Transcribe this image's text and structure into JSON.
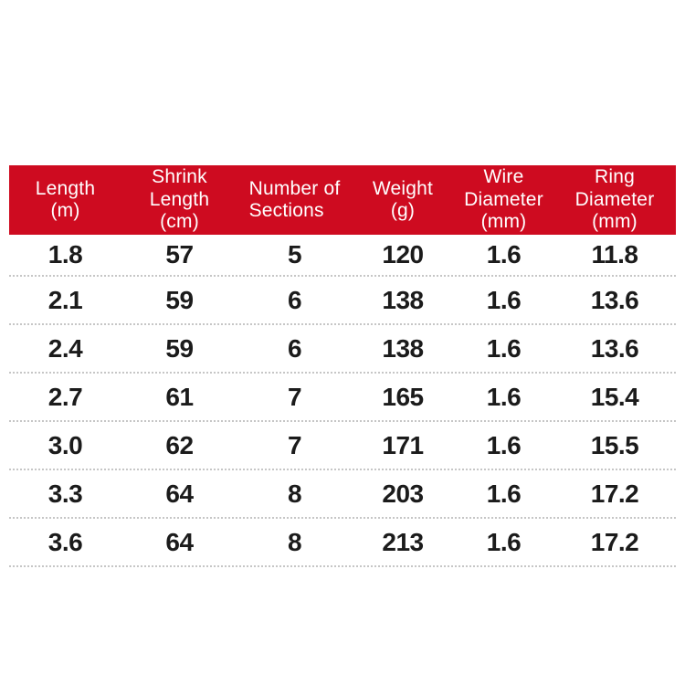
{
  "colors": {
    "header_bg": "#ce0b20",
    "header_text": "#ffffff",
    "data_text": "#1b1b1b",
    "separator": "#c6c6c6",
    "background": "#ffffff"
  },
  "table": {
    "columns": [
      "Length\n(m)",
      "Shrink\nLength\n(cm)",
      "Number of\nSections",
      "Weight\n(g)",
      "Wire\nDiameter\n(mm)",
      "Ring\nDiameter\n(mm)"
    ],
    "rows": [
      [
        "1.8",
        "57",
        "5",
        "120",
        "1.6",
        "11.8"
      ],
      [
        "2.1",
        "59",
        "6",
        "138",
        "1.6",
        "13.6"
      ],
      [
        "2.4",
        "59",
        "6",
        "138",
        "1.6",
        "13.6"
      ],
      [
        "2.7",
        "61",
        "7",
        "165",
        "1.6",
        "15.4"
      ],
      [
        "3.0",
        "62",
        "7",
        "171",
        "1.6",
        "15.5"
      ],
      [
        "3.3",
        "64",
        "8",
        "203",
        "1.6",
        "17.2"
      ],
      [
        "3.6",
        "64",
        "8",
        "213",
        "1.6",
        "17.2"
      ]
    ]
  }
}
